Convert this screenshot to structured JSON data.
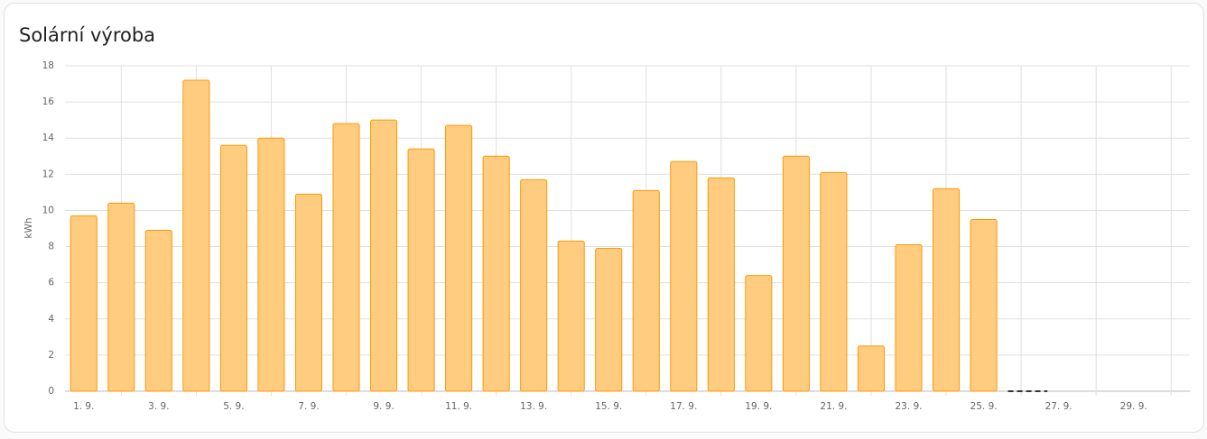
{
  "chart_data": {
    "type": "bar",
    "title": "Solární výroba",
    "ylabel": "kWh",
    "categories": [
      "1. 9.",
      null,
      "3. 9.",
      null,
      "5. 9.",
      null,
      "7. 9.",
      null,
      "9. 9.",
      null,
      "11. 9.",
      null,
      "13. 9.",
      null,
      "15. 9.",
      null,
      "17. 9.",
      null,
      "19. 9.",
      null,
      "21. 9.",
      null,
      "23. 9.",
      null,
      "25. 9.",
      null,
      "27. 9.",
      null,
      "29. 9.",
      null
    ],
    "values": [
      9.7,
      10.4,
      8.9,
      17.2,
      13.6,
      14.0,
      10.9,
      14.8,
      15.0,
      13.4,
      14.7,
      13.0,
      11.7,
      8.3,
      7.9,
      11.1,
      12.7,
      11.8,
      6.4,
      13.0,
      12.1,
      2.5,
      8.1,
      11.2,
      9.5,
      0,
      null,
      null,
      null,
      null
    ],
    "color": "#ffcc80",
    "border_color": "#ff9800",
    "ylim": [
      0,
      18
    ],
    "yticks": [
      0,
      2,
      4,
      6,
      8,
      10,
      12,
      14,
      16,
      18
    ],
    "grid": true
  }
}
